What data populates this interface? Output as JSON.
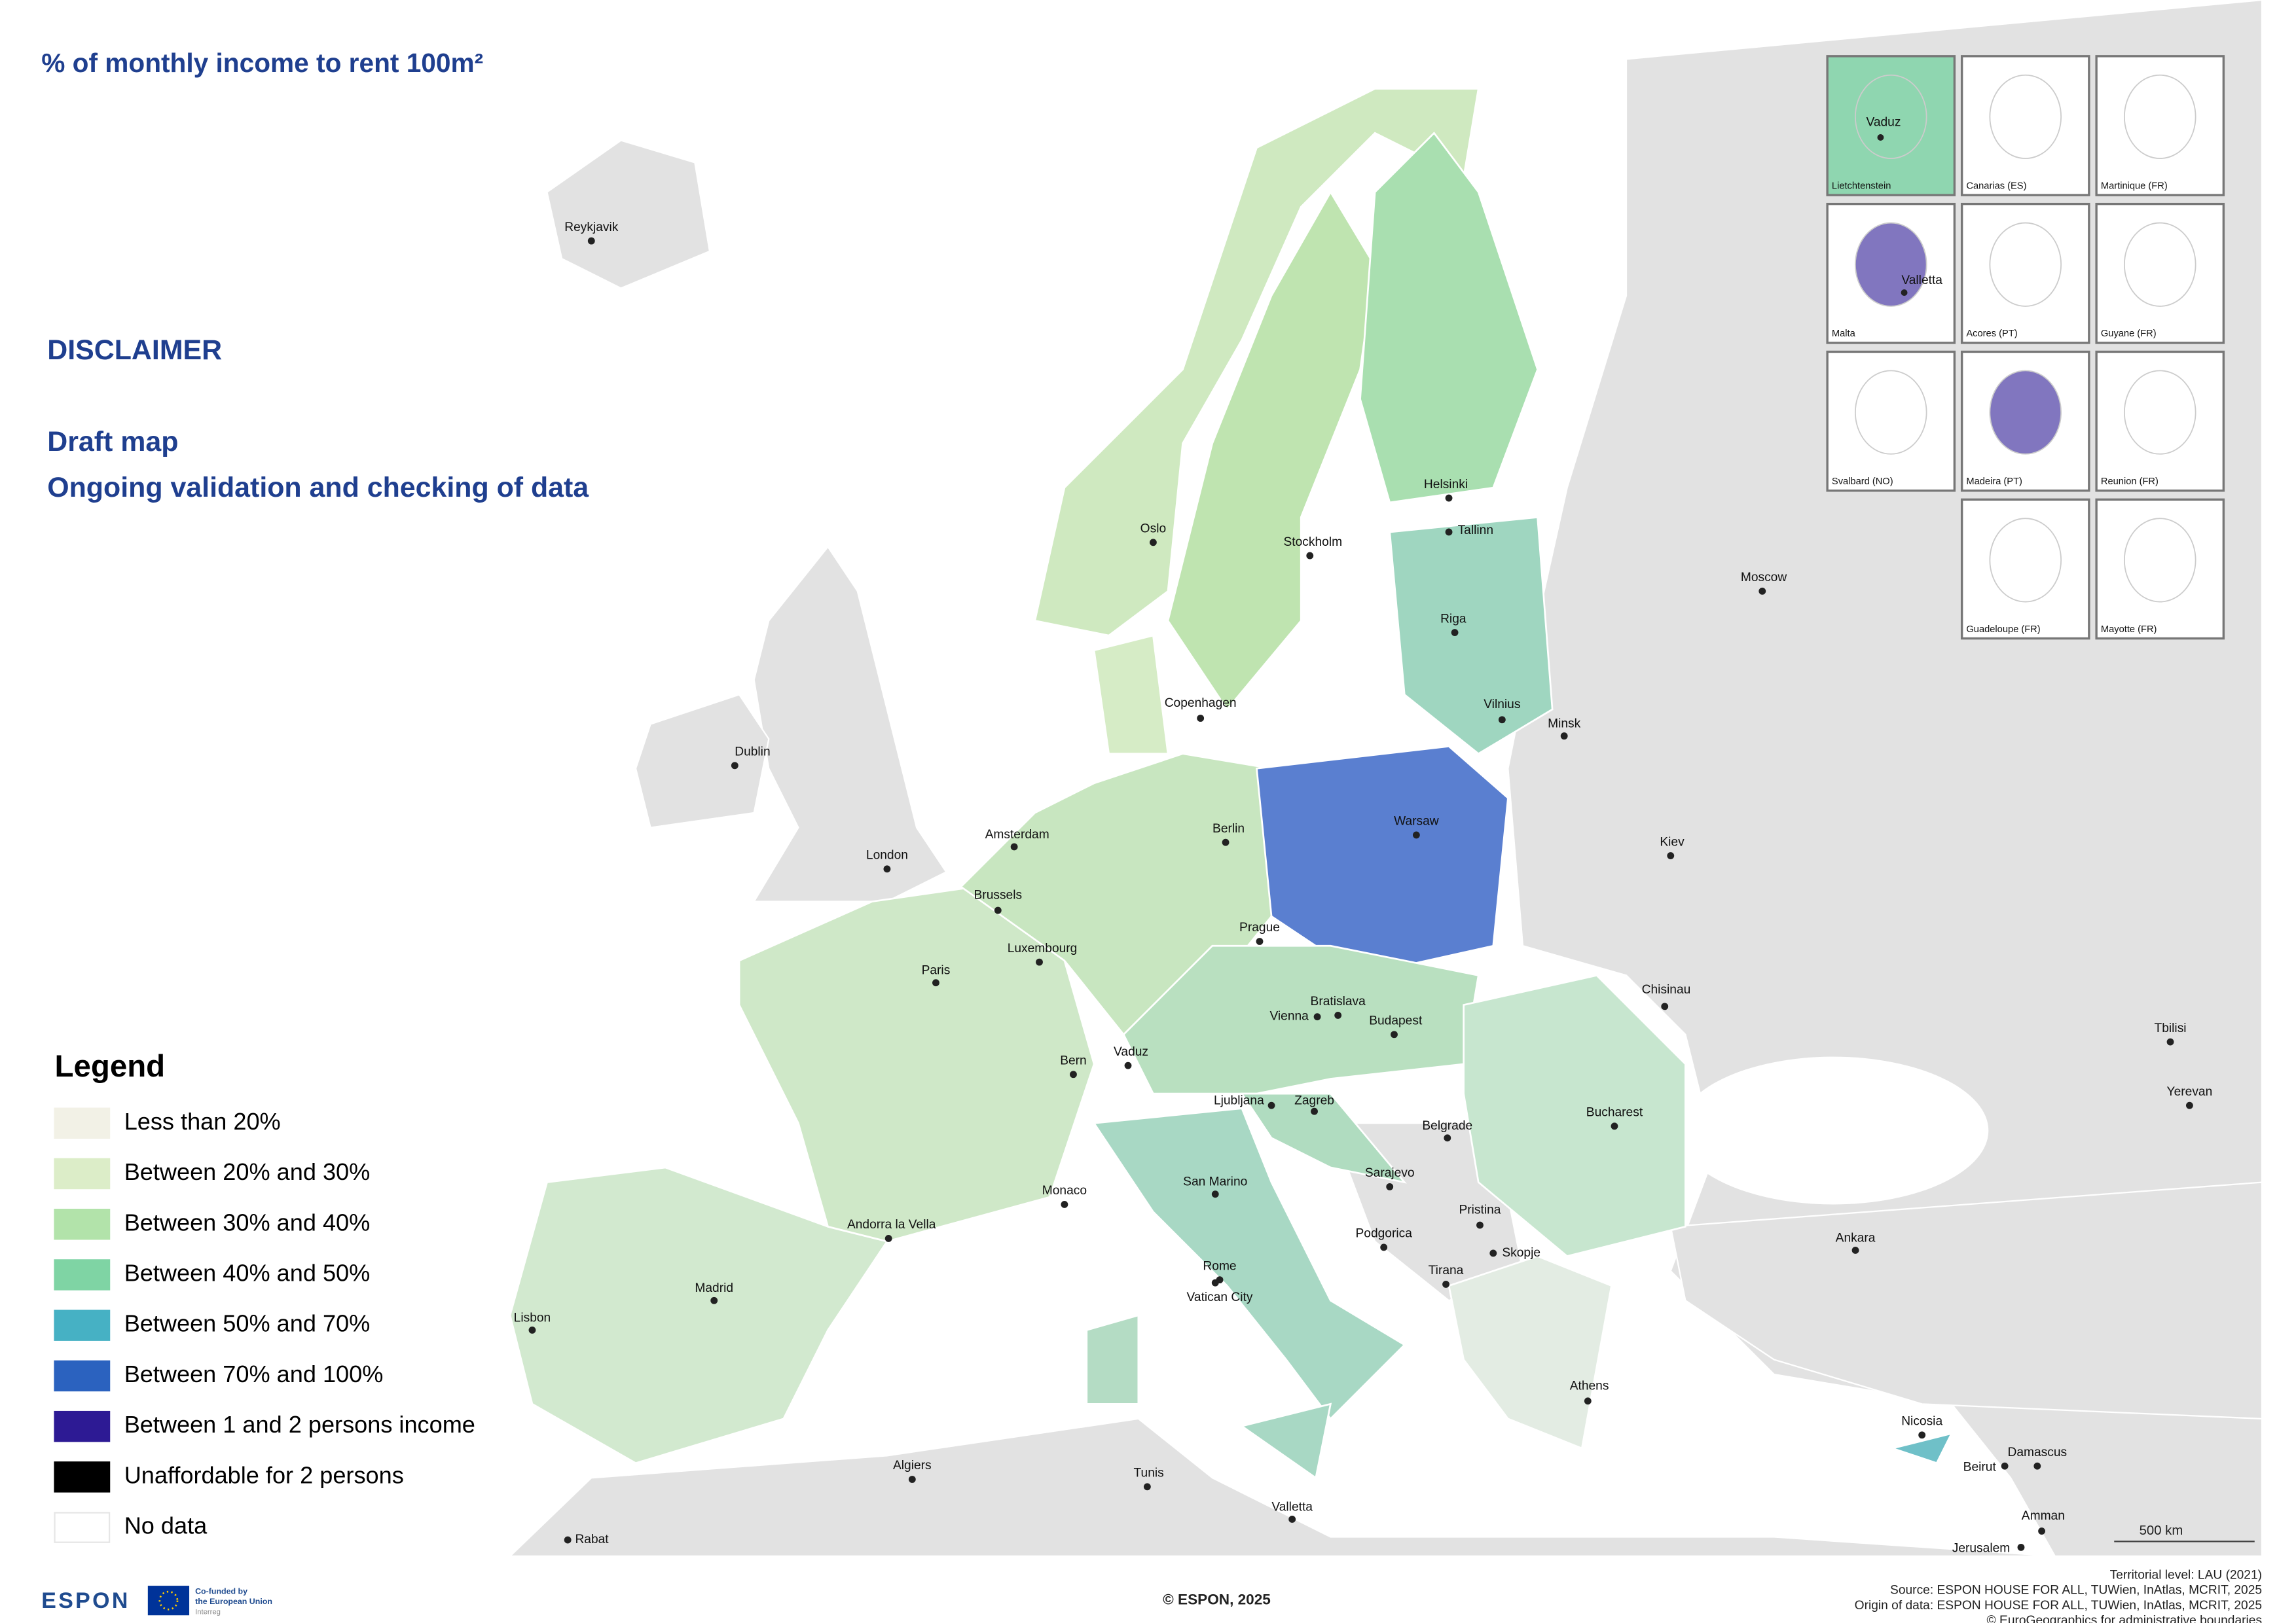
{
  "header": {
    "title": "% of monthly income to rent 100m²"
  },
  "disclaimer": {
    "heading": "DISCLAIMER",
    "lines": [
      "Draft map",
      "Ongoing validation and checking of data"
    ]
  },
  "legend": {
    "title": "Legend",
    "items": [
      {
        "label": "Less than 20%",
        "color": "#f2f1e6"
      },
      {
        "label": "Between 20% and 30%",
        "color": "#dcedc8"
      },
      {
        "label": "Between 30% and 40%",
        "color": "#b2e3aa"
      },
      {
        "label": "Between 40% and 50%",
        "color": "#7fd4a4"
      },
      {
        "label": "Between 50% and 70%",
        "color": "#46b1c4"
      },
      {
        "label": "Between 70% and 100%",
        "color": "#2b62bf"
      },
      {
        "label": "Between 1 and 2 persons income",
        "color": "#2d1a94"
      },
      {
        "label": "Unaffordable for 2 persons",
        "color": "#000000"
      },
      {
        "label": "No data",
        "color": "#ffffff"
      }
    ]
  },
  "cities": [
    "Reykjavik",
    "Oslo",
    "Stockholm",
    "Helsinki",
    "Tallinn",
    "Riga",
    "Moscow",
    "Copenhagen",
    "Vilnius",
    "Minsk",
    "Dublin",
    "London",
    "Amsterdam",
    "Berlin",
    "Warsaw",
    "Kiev",
    "Brussels",
    "Luxembourg",
    "Prague",
    "Paris",
    "Chisinau",
    "Bratislava",
    "Vienna",
    "Budapest",
    "Vaduz",
    "Bern",
    "Tbilisi",
    "Ljubljana",
    "Zagreb",
    "Yerevan",
    "Bucharest",
    "Belgrade",
    "Monaco",
    "San Marino",
    "Sarajevo",
    "Andorra la Vella",
    "Pristina",
    "Ankara",
    "Podgorica",
    "Skopje",
    "Rome",
    "Tirana",
    "Vatican City",
    "Madrid",
    "Lisbon",
    "Athens",
    "Nicosia",
    "Damascus",
    "Beirut",
    "Algiers",
    "Tunis",
    "Valletta",
    "Amman",
    "Rabat",
    "Jerusalem"
  ],
  "insets": [
    {
      "label": "Lietchtenstein",
      "city": "Vaduz"
    },
    {
      "label": "Canarias (ES)"
    },
    {
      "label": "Martinique (FR)"
    },
    {
      "label": "Malta",
      "city": "Valletta"
    },
    {
      "label": "Acores (PT)"
    },
    {
      "label": "Guyane (FR)"
    },
    {
      "label": "Svalbard (NO)"
    },
    {
      "label": "Madeira (PT)"
    },
    {
      "label": "Reunion (FR)"
    },
    {
      "label": "Guadeloupe (FR)"
    },
    {
      "label": "Mayotte (FR)"
    }
  ],
  "scale_bar": "500 km",
  "footer": {
    "copyright": "© ESPON, 2025",
    "notes": [
      "Territorial level: LAU (2021)",
      "Source: ESPON HOUSE FOR ALL, TUWien, InAtlas, MCRIT, 2025",
      "Origin of data: ESPON HOUSE FOR ALL, TUWien, InAtlas, MCRIT, 2025",
      "© EuroGeographics for administrative boundaries"
    ]
  },
  "logo": {
    "name": "ESPON",
    "cofunded": [
      "Co-funded by",
      "the European Union"
    ],
    "program": "Interreg"
  }
}
